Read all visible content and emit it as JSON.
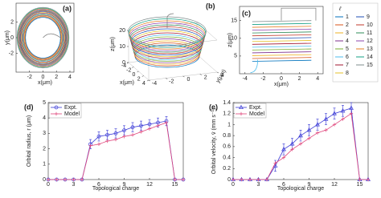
{
  "chart_data": [
    {
      "type": "trajectory",
      "panel_label": "(a)",
      "xlabel": "x(μm)",
      "ylabel": "y(μm)",
      "xlim": [
        -4,
        4.6
      ],
      "ylim": [
        -4.4,
        4.4
      ],
      "xticks": [
        -2,
        0,
        2,
        4
      ],
      "yticks": [
        -2,
        0,
        2
      ]
    },
    {
      "type": "trajectory3d",
      "panel_label": "(b)",
      "xlabel": "x(μm)",
      "ylabel": "y(μm)",
      "zlabel": "z(μm)",
      "xlim": [
        -4,
        4
      ],
      "ylim": [
        -4,
        4
      ],
      "zlim": [
        0,
        20
      ],
      "xticks": [
        -4,
        -2,
        0,
        2,
        4
      ],
      "yticks": [
        -4,
        -2,
        0,
        2,
        4
      ],
      "zticks": [
        0,
        10,
        20
      ]
    },
    {
      "type": "trajectory-side",
      "panel_label": "(c)",
      "xlabel": "x(μm)",
      "ylabel": "z(μm)",
      "xlim": [
        -4.6,
        4.6
      ],
      "ylim": [
        0,
        19
      ],
      "xticks": [
        -4,
        -2,
        0,
        2,
        4
      ],
      "yticks": [
        5,
        10,
        15
      ],
      "legend": {
        "title": "ℓ",
        "entries": [
          {
            "name": "1",
            "color": "#0072bd"
          },
          {
            "name": "2",
            "color": "#d95319"
          },
          {
            "name": "3",
            "color": "#edb120"
          },
          {
            "name": "4",
            "color": "#7e2f8e"
          },
          {
            "name": "5",
            "color": "#77ac30"
          },
          {
            "name": "6",
            "color": "#4dbeee"
          },
          {
            "name": "7",
            "color": "#a2142f"
          },
          {
            "name": "8",
            "color": "#e6c229"
          },
          {
            "name": "9",
            "color": "#1f4fb4"
          },
          {
            "name": "10",
            "color": "#c0392b"
          },
          {
            "name": "11",
            "color": "#2e8b57"
          },
          {
            "name": "12",
            "color": "#8e44ad"
          },
          {
            "name": "13",
            "color": "#e67e22"
          },
          {
            "name": "14",
            "color": "#16a085"
          },
          {
            "name": "15",
            "color": "#7f8c8d"
          }
        ]
      }
    },
    {
      "type": "line",
      "panel_label": "(d)",
      "xlabel": "Topological charge",
      "ylabel": "Orbital radius, r (μm)",
      "x": [
        0,
        1,
        2,
        3,
        4,
        5,
        6,
        7,
        8,
        9,
        10,
        11,
        12,
        13,
        14,
        15,
        16
      ],
      "xlim": [
        0,
        16
      ],
      "ylim": [
        0,
        5
      ],
      "xticks": [
        0,
        3,
        6,
        9,
        12,
        15
      ],
      "yticks": [
        0,
        1,
        2,
        3,
        4,
        5
      ],
      "series": [
        {
          "name": "Expt.",
          "color": "#3a3ad6",
          "marker": "circle",
          "values": [
            0,
            0,
            0,
            0,
            0,
            2.3,
            2.8,
            2.9,
            3.0,
            3.2,
            3.4,
            3.5,
            3.6,
            3.7,
            3.8,
            0,
            0
          ],
          "errors": [
            0,
            0,
            0,
            0,
            0,
            0.3,
            0.3,
            0.3,
            0.3,
            0.3,
            0.3,
            0.3,
            0.3,
            0.3,
            0.3,
            0,
            0
          ]
        },
        {
          "name": "Model",
          "color": "#e0457b",
          "marker": "plus",
          "values": [
            0,
            0,
            0,
            0,
            0,
            2.2,
            2.3,
            2.5,
            2.6,
            2.8,
            2.9,
            3.1,
            3.3,
            3.5,
            3.7,
            0,
            0
          ]
        }
      ]
    },
    {
      "type": "line",
      "panel_label": "(e)",
      "xlabel": "Topological charge",
      "ylabel": "Orbital velocity, v̄ (mm s⁻¹)",
      "x": [
        0,
        1,
        2,
        3,
        4,
        5,
        6,
        7,
        8,
        9,
        10,
        11,
        12,
        13,
        14,
        15,
        16
      ],
      "xlim": [
        0,
        16
      ],
      "ylim": [
        0,
        1.4
      ],
      "xticks": [
        0,
        3,
        6,
        9,
        12,
        15
      ],
      "yticks": [
        0,
        0.2,
        0.4,
        0.6,
        0.8,
        1,
        1.2,
        1.4
      ],
      "series": [
        {
          "name": "Expt.",
          "color": "#3a3ad6",
          "marker": "triangle",
          "values": [
            0,
            0,
            0,
            0,
            0,
            0.25,
            0.55,
            0.65,
            0.8,
            0.9,
            1.0,
            1.1,
            1.2,
            1.25,
            1.3,
            0,
            0
          ],
          "errors": [
            0,
            0,
            0,
            0,
            0,
            0.1,
            0.1,
            0.1,
            0.1,
            0.1,
            0.1,
            0.1,
            0.1,
            0.1,
            0.1,
            0,
            0
          ]
        },
        {
          "name": "Model",
          "color": "#e0457b",
          "marker": "plus",
          "values": [
            0,
            0,
            0,
            0,
            0,
            0.3,
            0.4,
            0.55,
            0.65,
            0.75,
            0.85,
            0.9,
            1.0,
            1.1,
            1.2,
            0,
            0
          ]
        }
      ]
    }
  ]
}
